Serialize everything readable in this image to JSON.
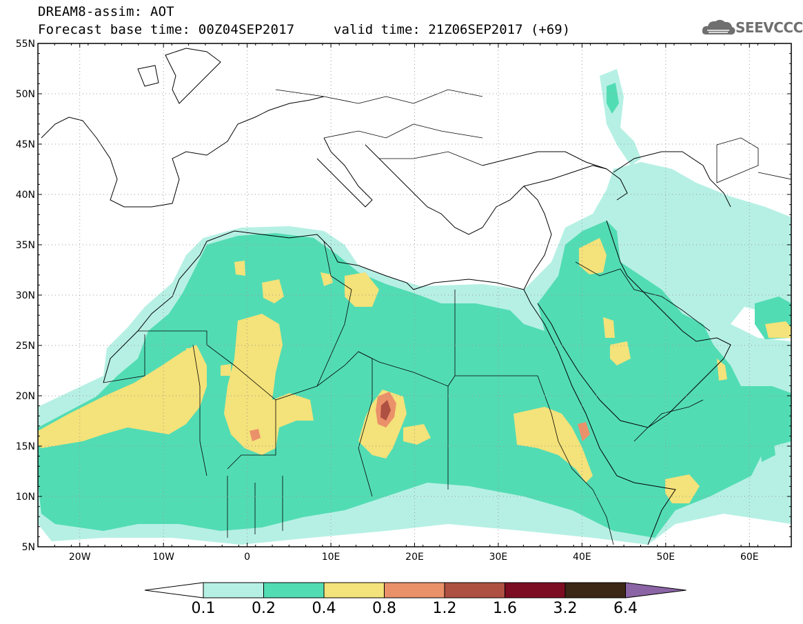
{
  "header": {
    "line1": "DREAM8-assim: AOT",
    "line2_base": "Forecast base time: 00Z04SEP2017",
    "line2_valid": "valid time: 21Z06SEP2017 (+69)",
    "logo_text": "SEEVCCC"
  },
  "map": {
    "lat_labels": [
      "55N",
      "50N",
      "45N",
      "40N",
      "35N",
      "30N",
      "25N",
      "20N",
      "15N",
      "10N",
      "5N"
    ],
    "lon_labels": [
      "20W",
      "10W",
      "0",
      "10E",
      "20E",
      "30E",
      "40E",
      "50E",
      "60E"
    ],
    "lat_range": [
      5,
      55
    ],
    "lon_range": [
      -25,
      65
    ],
    "field": "AOT"
  },
  "colorbar": {
    "labels": [
      "0.1",
      "0.2",
      "0.4",
      "0.8",
      "1.2",
      "1.6",
      "3.2",
      "6.4"
    ],
    "colors": [
      "#ffffff",
      "#b6f0e4",
      "#52dcb4",
      "#f4e27a",
      "#ea916a",
      "#ae5042",
      "#7c0c22",
      "#3c2616",
      "#8a64a4"
    ]
  }
}
